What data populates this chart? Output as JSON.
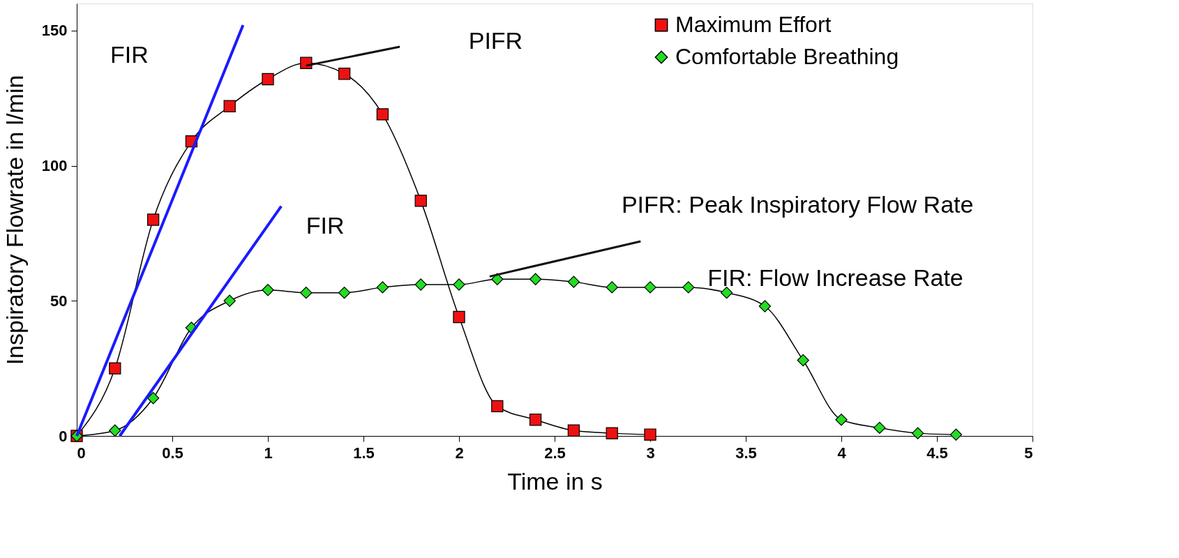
{
  "chart_data": {
    "type": "line",
    "xlabel": "Time in s",
    "ylabel": "Inspiratory Flowrate in l/min",
    "xlim": [
      0,
      5
    ],
    "ylim": [
      0,
      160
    ],
    "xticks": [
      0,
      0.5,
      1,
      1.5,
      2,
      2.5,
      3,
      3.5,
      4,
      4.5,
      5
    ],
    "yticks": [
      0,
      50,
      100,
      150
    ],
    "grid": false,
    "legend": "top right",
    "line_style": "solid",
    "series": [
      {
        "name": "Maximum Effort",
        "color": "#ee1111",
        "marker": "square",
        "x": [
          0,
          0.2,
          0.4,
          0.6,
          0.8,
          1.0,
          1.2,
          1.4,
          1.6,
          1.8,
          2.0,
          2.2,
          2.4,
          2.6,
          2.8,
          3.0
        ],
        "values": [
          0,
          25,
          80,
          109,
          122,
          132,
          138,
          134,
          119,
          87,
          44,
          11,
          6,
          2,
          1,
          0.5
        ]
      },
      {
        "name": "Comfortable Breathing",
        "color": "#22dd22",
        "marker": "diamond",
        "x": [
          0,
          0.2,
          0.4,
          0.6,
          0.8,
          1.0,
          1.2,
          1.4,
          1.6,
          1.8,
          2.0,
          2.2,
          2.4,
          2.6,
          2.8,
          3.0,
          3.2,
          3.4,
          3.6,
          3.8,
          4.0,
          4.2,
          4.4,
          4.6
        ],
        "values": [
          0,
          2,
          14,
          40,
          50,
          54,
          53,
          53,
          55,
          56,
          56,
          58,
          58,
          57,
          55,
          55,
          55,
          53,
          48,
          28,
          6,
          3,
          1,
          0.5
        ]
      },
      {
        "type": "line",
        "color": "#1a1aff",
        "marker": "none",
        "x": [
          0,
          0.87
        ],
        "values": [
          0,
          152
        ]
      },
      {
        "type": "line",
        "color": "#1a1aff",
        "marker": "none",
        "x": [
          0.225,
          1.07
        ],
        "values": [
          0,
          85
        ]
      },
      {
        "type": "line",
        "color": "#111111",
        "marker": "none",
        "x": [
          1.2,
          1.69
        ],
        "values": [
          137,
          144
        ]
      },
      {
        "type": "line",
        "color": "#111111",
        "marker": "none",
        "x": [
          2.16,
          2.95
        ],
        "values": [
          59,
          72
        ]
      }
    ],
    "annotations": [
      "FIR",
      "FIR",
      "PIFR",
      "PIFR: Peak Inspiratory Flow Rate",
      "FIR: Flow Increase Rate"
    ]
  }
}
